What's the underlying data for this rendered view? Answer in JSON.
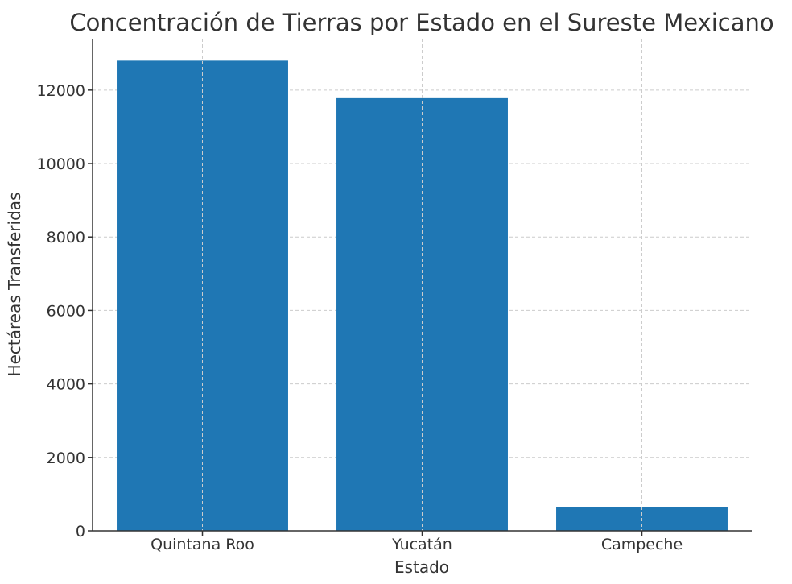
{
  "chart_data": {
    "type": "bar",
    "title": "Concentración de Tierras por Estado en el Sureste Mexicano",
    "xlabel": "Estado",
    "ylabel": "Hectáreas Transferidas",
    "categories": [
      "Quintana Roo",
      "Yucatán",
      "Campeche"
    ],
    "values": [
      12800,
      11780,
      650
    ],
    "ylim": [
      0,
      13400
    ],
    "yticks": [
      0,
      2000,
      4000,
      6000,
      8000,
      10000,
      12000
    ],
    "grid": true,
    "bar_color": "#1f77b4"
  }
}
